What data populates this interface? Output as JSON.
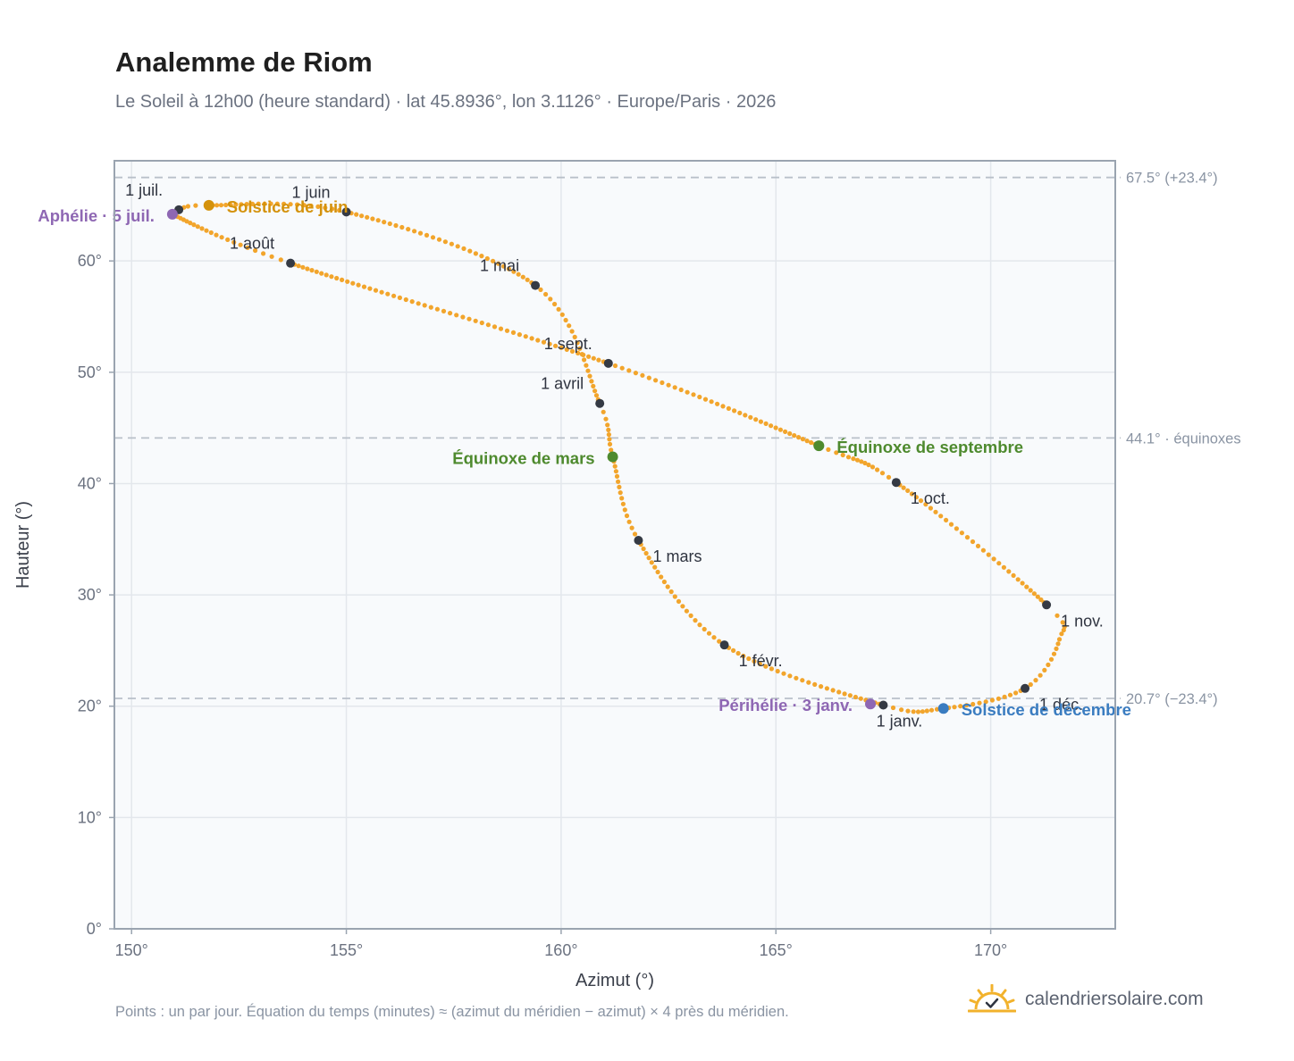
{
  "title": "Analemme de Riom",
  "subtitle": "Le Soleil à 12h00 (heure standard) · lat 45.8936°, lon 3.1126° · Europe/Paris · 2026",
  "footer_note": "Points : un par jour. Équation du temps (minutes) ≈ (azimut du méridien − azimut) × 4 près du méridien.",
  "brand": "calendriersolaire.com",
  "colors": {
    "curve": "#f2a52c",
    "month_dot": "#353a44",
    "solstice_june": "#d4920c",
    "solstice_december": "#3a7cc0",
    "equinox": "#4e8a2e",
    "perihelion_aphelion": "#8e67b3",
    "reference_line": "#b9c0c9",
    "plot_bg": "#f8fafc",
    "grid": "#e3e7ec",
    "frame": "#9aa4b0"
  },
  "chart_data": {
    "type": "scatter",
    "xlabel": "Azimut (°)",
    "ylabel": "Hauteur (°)",
    "xlim": [
      149.6,
      172.9
    ],
    "ylim": [
      0,
      69.0
    ],
    "xticks": [
      {
        "value": 150,
        "label": "150°"
      },
      {
        "value": 155,
        "label": "155°"
      },
      {
        "value": 160,
        "label": "160°"
      },
      {
        "value": 165,
        "label": "165°"
      },
      {
        "value": 170,
        "label": "170°"
      }
    ],
    "yticks": [
      {
        "value": 0,
        "label": "0°"
      },
      {
        "value": 10,
        "label": "10°"
      },
      {
        "value": 20,
        "label": "20°"
      },
      {
        "value": 30,
        "label": "30°"
      },
      {
        "value": 40,
        "label": "40°"
      },
      {
        "value": 50,
        "label": "50°"
      },
      {
        "value": 60,
        "label": "60°"
      }
    ],
    "grid": true,
    "curve_keypoints": [
      {
        "x": 167.5,
        "y": 20.1
      },
      {
        "x": 163.8,
        "y": 25.5
      },
      {
        "x": 161.8,
        "y": 34.9
      },
      {
        "x": 161.2,
        "y": 42.4
      },
      {
        "x": 160.9,
        "y": 47.2
      },
      {
        "x": 159.4,
        "y": 57.8
      },
      {
        "x": 155.0,
        "y": 64.4
      },
      {
        "x": 151.8,
        "y": 65.0
      },
      {
        "x": 151.1,
        "y": 64.6
      },
      {
        "x": 150.95,
        "y": 64.2
      },
      {
        "x": 153.7,
        "y": 59.8
      },
      {
        "x": 161.1,
        "y": 50.8
      },
      {
        "x": 166.0,
        "y": 43.4
      },
      {
        "x": 167.8,
        "y": 40.1
      },
      {
        "x": 171.3,
        "y": 29.1
      },
      {
        "x": 171.6,
        "y": 26.0
      },
      {
        "x": 170.8,
        "y": 21.6
      },
      {
        "x": 168.9,
        "y": 19.8
      },
      {
        "x": 167.5,
        "y": 20.1
      }
    ],
    "month_points": [
      {
        "label": "1 janv.",
        "x": 167.5,
        "y": 20.1,
        "anchor": "below"
      },
      {
        "label": "1 févr.",
        "x": 163.8,
        "y": 25.5,
        "anchor": "below-right"
      },
      {
        "label": "1 mars",
        "x": 161.8,
        "y": 34.9,
        "anchor": "below-right"
      },
      {
        "label": "1 avril",
        "x": 160.9,
        "y": 47.2,
        "anchor": "above-left"
      },
      {
        "label": "1 mai",
        "x": 159.4,
        "y": 57.8,
        "anchor": "above-left"
      },
      {
        "label": "1 juin",
        "x": 155.0,
        "y": 64.4,
        "anchor": "above-left"
      },
      {
        "label": "1 juil.",
        "x": 151.1,
        "y": 64.6,
        "anchor": "above-left"
      },
      {
        "label": "1 août",
        "x": 153.7,
        "y": 59.8,
        "anchor": "above-left"
      },
      {
        "label": "1 sept.",
        "x": 161.1,
        "y": 50.8,
        "anchor": "above-left"
      },
      {
        "label": "1 oct.",
        "x": 167.8,
        "y": 40.1,
        "anchor": "below-right"
      },
      {
        "label": "1 nov.",
        "x": 171.3,
        "y": 29.1,
        "anchor": "below-right"
      },
      {
        "label": "1 déc.",
        "x": 170.8,
        "y": 21.6,
        "anchor": "below-right"
      }
    ],
    "special_points": [
      {
        "label": "Solstice de juin",
        "x": 151.8,
        "y": 65.0,
        "color_key": "solstice_june",
        "anchor": "right"
      },
      {
        "label": "Solstice de décembre",
        "x": 168.9,
        "y": 19.8,
        "color_key": "solstice_december",
        "anchor": "right"
      },
      {
        "label": "Équinoxe de mars",
        "x": 161.2,
        "y": 42.4,
        "color_key": "equinox",
        "anchor": "left"
      },
      {
        "label": "Équinoxe de septembre",
        "x": 166.0,
        "y": 43.4,
        "color_key": "equinox",
        "anchor": "right"
      },
      {
        "label": "Aphélie · 5 juil.",
        "x": 150.95,
        "y": 64.2,
        "color_key": "perihelion_aphelion",
        "anchor": "left"
      },
      {
        "label": "Périhélie · 3 janv.",
        "x": 167.2,
        "y": 20.2,
        "color_key": "perihelion_aphelion",
        "anchor": "left"
      }
    ],
    "reference_lines": [
      {
        "y": 67.5,
        "label": "67.5° (+23.4°)"
      },
      {
        "y": 44.1,
        "label": "44.1° · équinoxes"
      },
      {
        "y": 20.7,
        "label": "20.7° (−23.4°)"
      }
    ]
  }
}
